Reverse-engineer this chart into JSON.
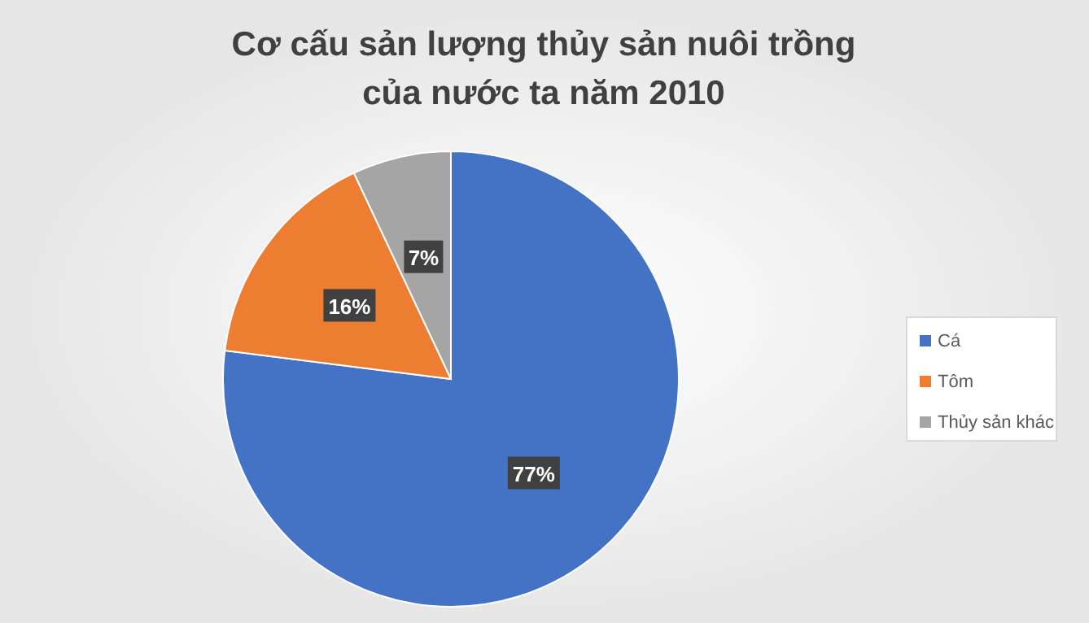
{
  "chart_data": {
    "type": "pie",
    "title": "Cơ cấu sản lượng thủy sản nuôi trồng của nước ta năm 2010",
    "categories": [
      "Cá",
      "Tôm",
      "Thủy sản khác"
    ],
    "values": [
      77,
      16,
      7
    ],
    "colors": [
      "#4472c4",
      "#ed7d31",
      "#a5a5a5"
    ],
    "value_labels": [
      "77%",
      "16%",
      "7%"
    ],
    "legend": "right"
  }
}
